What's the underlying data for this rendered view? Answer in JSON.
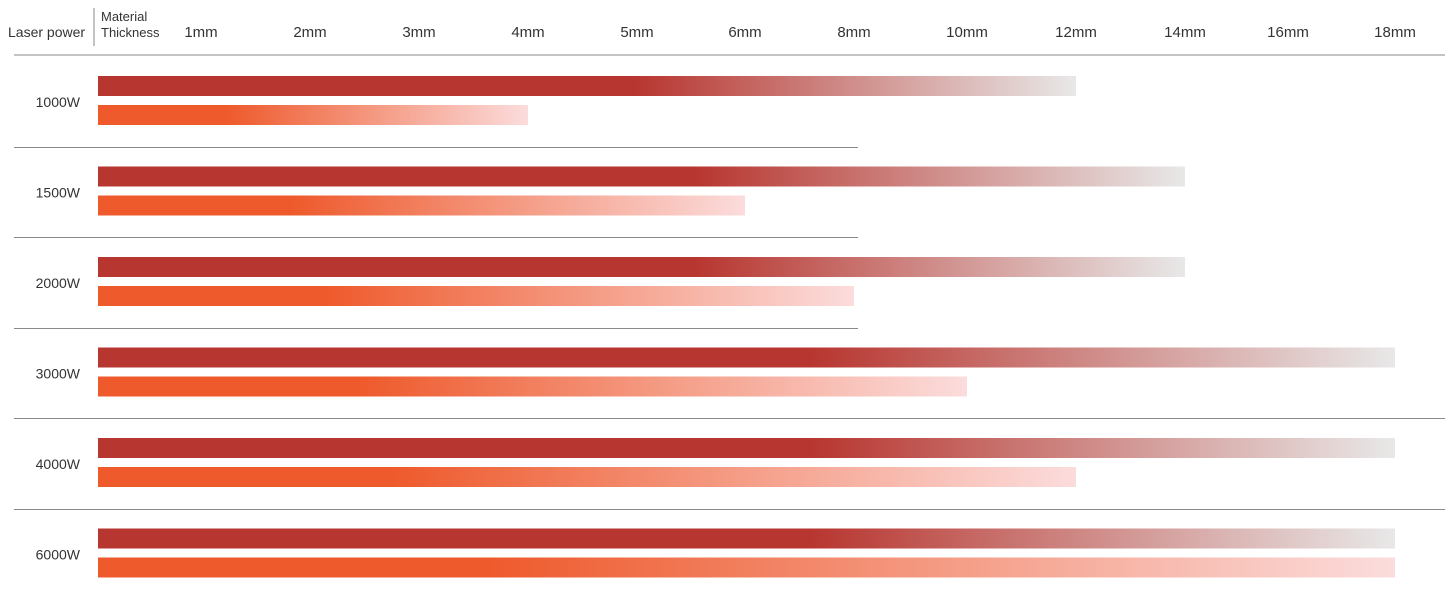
{
  "chart_data": {
    "type": "bar",
    "row_header": "Laser power",
    "column_header": [
      "Material",
      "Thickness"
    ],
    "x_ticks": [
      "1mm",
      "2mm",
      "3mm",
      "4mm",
      "5mm",
      "6mm",
      "8mm",
      "10mm",
      "12mm",
      "14mm",
      "16mm",
      "18mm"
    ],
    "categories": [
      "1000W",
      "1500W",
      "2000W",
      "3000W",
      "4000W",
      "6000W"
    ],
    "series": [
      {
        "values": [
          "12mm",
          "14mm",
          "14mm",
          "18mm",
          "18mm",
          "18mm"
        ]
      },
      {
        "values": [
          "4mm",
          "6mm",
          "8mm",
          "10mm",
          "12mm",
          "18mm"
        ]
      }
    ],
    "colors": {
      "series_1_start": "#b83630",
      "series_1_end": "#e8e8e8",
      "series_2_start": "#ee5a2c",
      "series_2_end": "#fbdcdc",
      "divider": "#8a8a8a"
    },
    "grid": false,
    "legend": "none"
  }
}
